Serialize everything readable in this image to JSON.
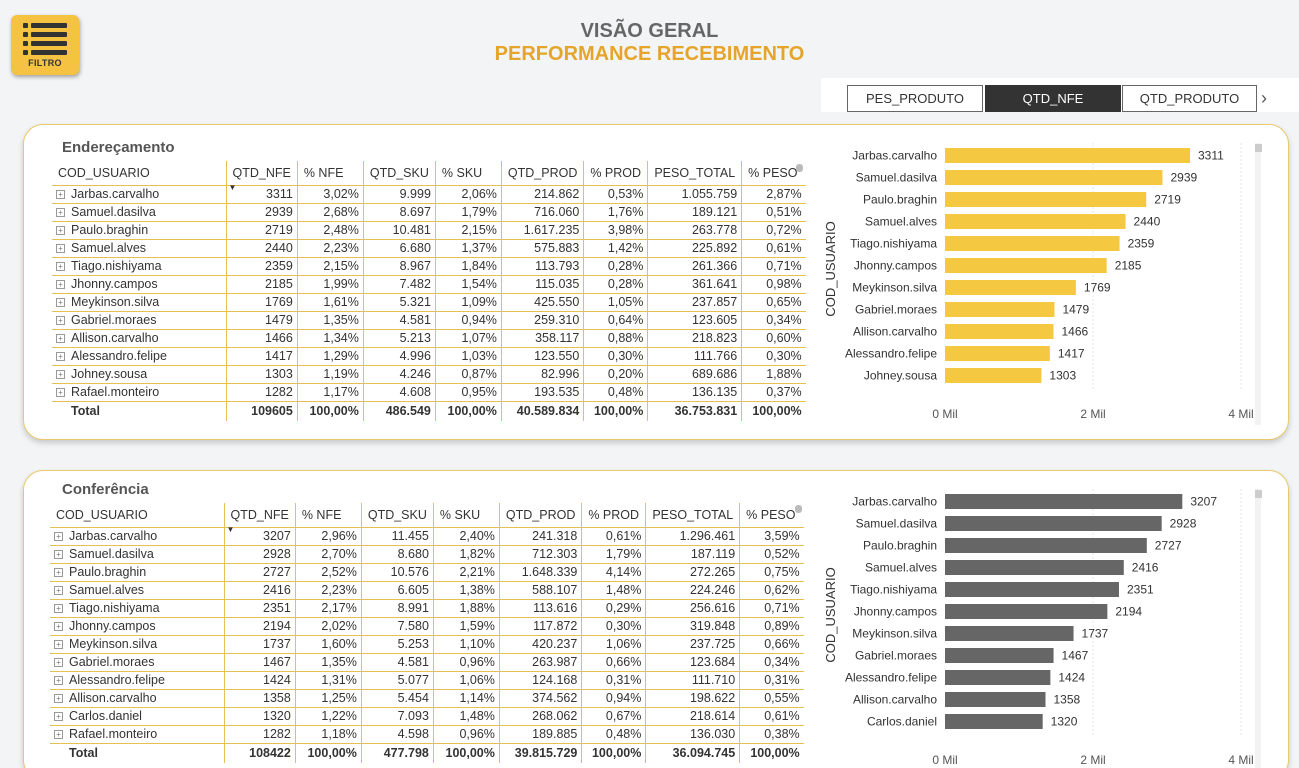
{
  "header": {
    "filter_label": "FILTRO",
    "title": "VISÃO GERAL",
    "subtitle": "PERFORMANCE RECEBIMENTO"
  },
  "tabs": [
    {
      "label": "PES_PRODUTO",
      "active": false
    },
    {
      "label": "QTD_NFE",
      "active": true
    },
    {
      "label": "QTD_PRODUTO",
      "active": false
    }
  ],
  "columns": [
    "COD_USUARIO",
    "QTD_NFE",
    "% NFE",
    "QTD_SKU",
    "% SKU",
    "QTD_PROD",
    "% PROD",
    "PESO_TOTAL",
    "% PESO"
  ],
  "colors": {
    "enderecamento_bar": "#f5c842",
    "conferencia_bar": "#666666",
    "accent": "#e5a52b"
  },
  "sections": [
    {
      "title": "Endereçamento",
      "rows": [
        [
          "Jarbas.carvalho",
          "3311",
          "3,02%",
          "9.999",
          "2,06%",
          "214.862",
          "0,53%",
          "1.055.759",
          "2,87%"
        ],
        [
          "Samuel.dasilva",
          "2939",
          "2,68%",
          "8.697",
          "1,79%",
          "716.060",
          "1,76%",
          "189.121",
          "0,51%"
        ],
        [
          "Paulo.braghin",
          "2719",
          "2,48%",
          "10.481",
          "2,15%",
          "1.617.235",
          "3,98%",
          "263.778",
          "0,72%"
        ],
        [
          "Samuel.alves",
          "2440",
          "2,23%",
          "6.680",
          "1,37%",
          "575.883",
          "1,42%",
          "225.892",
          "0,61%"
        ],
        [
          "Tiago.nishiyama",
          "2359",
          "2,15%",
          "8.967",
          "1,84%",
          "113.793",
          "0,28%",
          "261.366",
          "0,71%"
        ],
        [
          "Jhonny.campos",
          "2185",
          "1,99%",
          "7.482",
          "1,54%",
          "115.035",
          "0,28%",
          "361.641",
          "0,98%"
        ],
        [
          "Meykinson.silva",
          "1769",
          "1,61%",
          "5.321",
          "1,09%",
          "425.550",
          "1,05%",
          "237.857",
          "0,65%"
        ],
        [
          "Gabriel.moraes",
          "1479",
          "1,35%",
          "4.581",
          "0,94%",
          "259.310",
          "0,64%",
          "123.605",
          "0,34%"
        ],
        [
          "Allison.carvalho",
          "1466",
          "1,34%",
          "5.213",
          "1,07%",
          "358.117",
          "0,88%",
          "218.823",
          "0,60%"
        ],
        [
          "Alessandro.felipe",
          "1417",
          "1,29%",
          "4.996",
          "1,03%",
          "123.550",
          "0,30%",
          "111.766",
          "0,30%"
        ],
        [
          "Johney.sousa",
          "1303",
          "1,19%",
          "4.246",
          "0,87%",
          "82.996",
          "0,20%",
          "689.686",
          "1,88%"
        ],
        [
          "Rafael.monteiro",
          "1282",
          "1,17%",
          "4.608",
          "0,95%",
          "193.535",
          "0,48%",
          "136.135",
          "0,37%"
        ]
      ],
      "total": [
        "Total",
        "109605",
        "100,00%",
        "486.549",
        "100,00%",
        "40.589.834",
        "100,00%",
        "36.753.831",
        "100,00%"
      ],
      "chart_data": {
        "type": "bar",
        "orientation": "horizontal",
        "ylabel": "COD_USUARIO",
        "categories": [
          "Jarbas.carvalho",
          "Samuel.dasilva",
          "Paulo.braghin",
          "Samuel.alves",
          "Tiago.nishiyama",
          "Jhonny.campos",
          "Meykinson.silva",
          "Gabriel.moraes",
          "Allison.carvalho",
          "Alessandro.felipe",
          "Johney.sousa"
        ],
        "values": [
          3311,
          2939,
          2719,
          2440,
          2359,
          2185,
          1769,
          1479,
          1466,
          1417,
          1303
        ],
        "xlim": [
          0,
          4000
        ],
        "xticks": [
          "0 Mil",
          "2 Mil",
          "4 Mil"
        ],
        "grid": true
      }
    },
    {
      "title": "Conferência",
      "rows": [
        [
          "Jarbas.carvalho",
          "3207",
          "2,96%",
          "11.455",
          "2,40%",
          "241.318",
          "0,61%",
          "1.296.461",
          "3,59%"
        ],
        [
          "Samuel.dasilva",
          "2928",
          "2,70%",
          "8.680",
          "1,82%",
          "712.303",
          "1,79%",
          "187.119",
          "0,52%"
        ],
        [
          "Paulo.braghin",
          "2727",
          "2,52%",
          "10.576",
          "2,21%",
          "1.648.339",
          "4,14%",
          "272.265",
          "0,75%"
        ],
        [
          "Samuel.alves",
          "2416",
          "2,23%",
          "6.605",
          "1,38%",
          "588.107",
          "1,48%",
          "224.246",
          "0,62%"
        ],
        [
          "Tiago.nishiyama",
          "2351",
          "2,17%",
          "8.991",
          "1,88%",
          "113.616",
          "0,29%",
          "256.616",
          "0,71%"
        ],
        [
          "Jhonny.campos",
          "2194",
          "2,02%",
          "7.580",
          "1,59%",
          "117.872",
          "0,30%",
          "319.848",
          "0,89%"
        ],
        [
          "Meykinson.silva",
          "1737",
          "1,60%",
          "5.253",
          "1,10%",
          "420.237",
          "1,06%",
          "237.725",
          "0,66%"
        ],
        [
          "Gabriel.moraes",
          "1467",
          "1,35%",
          "4.581",
          "0,96%",
          "263.987",
          "0,66%",
          "123.684",
          "0,34%"
        ],
        [
          "Alessandro.felipe",
          "1424",
          "1,31%",
          "5.077",
          "1,06%",
          "124.168",
          "0,31%",
          "111.710",
          "0,31%"
        ],
        [
          "Allison.carvalho",
          "1358",
          "1,25%",
          "5.454",
          "1,14%",
          "374.562",
          "0,94%",
          "198.622",
          "0,55%"
        ],
        [
          "Carlos.daniel",
          "1320",
          "1,22%",
          "7.093",
          "1,48%",
          "268.062",
          "0,67%",
          "218.614",
          "0,61%"
        ],
        [
          "Rafael.monteiro",
          "1282",
          "1,18%",
          "4.598",
          "0,96%",
          "189.885",
          "0,48%",
          "136.030",
          "0,38%"
        ]
      ],
      "total": [
        "Total",
        "108422",
        "100,00%",
        "477.798",
        "100,00%",
        "39.815.729",
        "100,00%",
        "36.094.745",
        "100,00%"
      ],
      "chart_data": {
        "type": "bar",
        "orientation": "horizontal",
        "ylabel": "COD_USUARIO",
        "categories": [
          "Jarbas.carvalho",
          "Samuel.dasilva",
          "Paulo.braghin",
          "Samuel.alves",
          "Tiago.nishiyama",
          "Jhonny.campos",
          "Meykinson.silva",
          "Gabriel.moraes",
          "Alessandro.felipe",
          "Allison.carvalho",
          "Carlos.daniel"
        ],
        "values": [
          3207,
          2928,
          2727,
          2416,
          2351,
          2194,
          1737,
          1467,
          1424,
          1358,
          1320
        ],
        "xlim": [
          0,
          4000
        ],
        "xticks": [
          "0 Mil",
          "2 Mil",
          "4 Mil"
        ],
        "grid": true
      }
    }
  ]
}
